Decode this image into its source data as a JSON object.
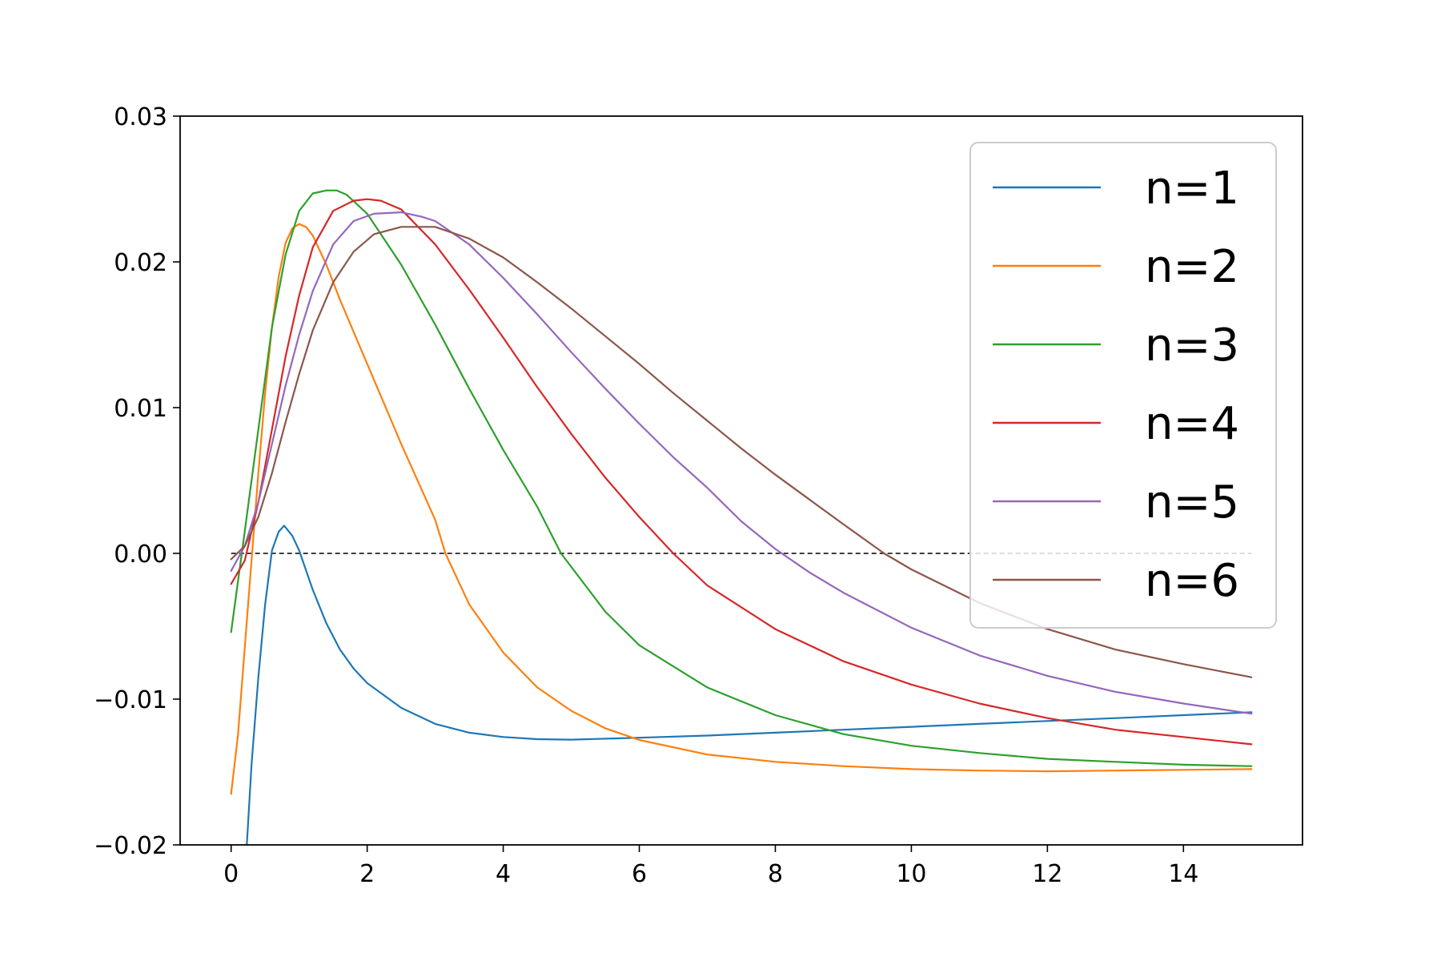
{
  "chart_data": {
    "type": "line",
    "title": "",
    "xlabel": "",
    "ylabel": "",
    "xlim": [
      -0.75,
      15.75
    ],
    "ylim": [
      -0.02,
      0.03
    ],
    "xticks": [
      "0",
      "2",
      "4",
      "6",
      "8",
      "10",
      "12",
      "14"
    ],
    "xtick_values": [
      0,
      2,
      4,
      6,
      8,
      10,
      12,
      14
    ],
    "yticks": [
      "−0.02",
      "−0.01",
      "0.00",
      "0.01",
      "0.02",
      "0.03"
    ],
    "ytick_values": [
      -0.02,
      -0.01,
      0.0,
      0.01,
      0.02,
      0.03
    ],
    "grid": false,
    "legend_position": "top-right",
    "reference_line": {
      "y": 0.0,
      "style": "dashed",
      "color": "#000000",
      "x_range": [
        0,
        15
      ]
    },
    "series": [
      {
        "name": "n=1",
        "color": "#1f77b4",
        "x": [
          0.23,
          0.3,
          0.4,
          0.5,
          0.6,
          0.7,
          0.78,
          0.9,
          1.0,
          1.2,
          1.4,
          1.6,
          1.8,
          2.0,
          2.5,
          3.0,
          3.5,
          4.0,
          4.5,
          5.0,
          6.0,
          7.0,
          8.0,
          9.0,
          10.0,
          11.0,
          12.0,
          13.0,
          14.0,
          15.0
        ],
        "y": [
          -0.02,
          -0.0145,
          -0.0085,
          -0.0035,
          0.0002,
          0.0015,
          0.0019,
          0.0012,
          0.0002,
          -0.0025,
          -0.0048,
          -0.0066,
          -0.0079,
          -0.0089,
          -0.0106,
          -0.0117,
          -0.0123,
          -0.0126,
          -0.01275,
          -0.01278,
          -0.01265,
          -0.0125,
          -0.0123,
          -0.0121,
          -0.0119,
          -0.0117,
          -0.0115,
          -0.0113,
          -0.0111,
          -0.0109
        ]
      },
      {
        "name": "n=2",
        "color": "#ff7f0e",
        "x": [
          0.0,
          0.1,
          0.2,
          0.3,
          0.4,
          0.5,
          0.6,
          0.7,
          0.8,
          0.9,
          1.0,
          1.1,
          1.2,
          1.4,
          1.6,
          1.8,
          2.0,
          2.2,
          2.5,
          3.0,
          3.15,
          3.5,
          4.0,
          4.5,
          5.0,
          5.5,
          6.0,
          7.0,
          8.0,
          9.0,
          10.0,
          11.0,
          12.0,
          13.0,
          14.0,
          15.0
        ],
        "y": [
          -0.0165,
          -0.0125,
          -0.0065,
          -0.0005,
          0.0055,
          0.011,
          0.0155,
          0.019,
          0.0213,
          0.0223,
          0.0226,
          0.0224,
          0.0218,
          0.0198,
          0.0174,
          0.0152,
          0.013,
          0.0108,
          0.0075,
          0.0023,
          0.0,
          -0.0035,
          -0.0068,
          -0.0092,
          -0.0108,
          -0.012,
          -0.0128,
          -0.0138,
          -0.0143,
          -0.0146,
          -0.0148,
          -0.0149,
          -0.01495,
          -0.0149,
          -0.01485,
          -0.0148
        ]
      },
      {
        "name": "n=3",
        "color": "#2ca02c",
        "x": [
          0.0,
          0.2,
          0.4,
          0.6,
          0.8,
          1.0,
          1.2,
          1.4,
          1.55,
          1.7,
          2.0,
          2.5,
          3.0,
          3.5,
          4.0,
          4.5,
          4.85,
          5.5,
          6.0,
          7.0,
          8.0,
          9.0,
          10.0,
          11.0,
          12.0,
          13.0,
          14.0,
          15.0
        ],
        "y": [
          -0.0054,
          0.0015,
          0.0085,
          0.0155,
          0.0205,
          0.0235,
          0.0247,
          0.0249,
          0.0249,
          0.0246,
          0.0233,
          0.0198,
          0.0157,
          0.0113,
          0.0071,
          0.0032,
          0.0,
          -0.004,
          -0.0063,
          -0.0092,
          -0.0111,
          -0.0124,
          -0.0132,
          -0.0137,
          -0.0141,
          -0.0143,
          -0.0145,
          -0.0146
        ]
      },
      {
        "name": "n=4",
        "color": "#d62728",
        "x": [
          0.0,
          0.2,
          0.4,
          0.6,
          0.8,
          1.0,
          1.2,
          1.5,
          1.8,
          2.0,
          2.2,
          2.5,
          3.0,
          3.5,
          4.0,
          4.5,
          5.0,
          5.5,
          6.0,
          6.5,
          7.0,
          8.0,
          9.0,
          10.0,
          11.0,
          12.0,
          13.0,
          14.0,
          15.0
        ],
        "y": [
          -0.0021,
          -0.0005,
          0.0035,
          0.0085,
          0.0135,
          0.0177,
          0.021,
          0.0235,
          0.0242,
          0.0243,
          0.0242,
          0.0236,
          0.0212,
          0.0181,
          0.0148,
          0.0114,
          0.0082,
          0.0052,
          0.0025,
          0.0,
          -0.0022,
          -0.0052,
          -0.0074,
          -0.009,
          -0.0103,
          -0.0113,
          -0.0121,
          -0.0126,
          -0.0131
        ]
      },
      {
        "name": "n=5",
        "color": "#9467bd",
        "x": [
          0.0,
          0.2,
          0.4,
          0.6,
          0.8,
          1.0,
          1.2,
          1.5,
          1.8,
          2.1,
          2.5,
          2.8,
          3.0,
          3.5,
          4.0,
          4.5,
          5.0,
          5.5,
          6.0,
          6.5,
          7.0,
          7.5,
          8.0,
          8.5,
          9.0,
          10.0,
          11.0,
          12.0,
          13.0,
          14.0,
          15.0
        ],
        "y": [
          -0.0012,
          0.0005,
          0.0035,
          0.0075,
          0.0115,
          0.015,
          0.018,
          0.0212,
          0.0228,
          0.0233,
          0.0234,
          0.0231,
          0.0228,
          0.0212,
          0.0189,
          0.0164,
          0.0138,
          0.0113,
          0.0089,
          0.0066,
          0.0045,
          0.0022,
          0.0003,
          -0.0013,
          -0.0027,
          -0.0051,
          -0.007,
          -0.0084,
          -0.0095,
          -0.0103,
          -0.011
        ]
      },
      {
        "name": "n=6",
        "color": "#8c564b",
        "x": [
          0.0,
          0.2,
          0.4,
          0.6,
          0.8,
          1.0,
          1.2,
          1.5,
          1.8,
          2.1,
          2.5,
          3.0,
          3.5,
          4.0,
          4.5,
          5.0,
          5.5,
          6.0,
          6.5,
          7.0,
          7.5,
          8.0,
          8.5,
          9.0,
          9.6,
          10.0,
          11.0,
          12.0,
          13.0,
          14.0,
          15.0
        ],
        "y": [
          -0.0004,
          0.0005,
          0.0025,
          0.0055,
          0.009,
          0.0123,
          0.0153,
          0.0186,
          0.0207,
          0.0219,
          0.0224,
          0.0224,
          0.0216,
          0.0203,
          0.0186,
          0.0168,
          0.0149,
          0.013,
          0.011,
          0.0091,
          0.0072,
          0.0054,
          0.0037,
          0.002,
          0.0,
          -0.0011,
          -0.0034,
          -0.0052,
          -0.0066,
          -0.0076,
          -0.0085
        ]
      }
    ]
  }
}
